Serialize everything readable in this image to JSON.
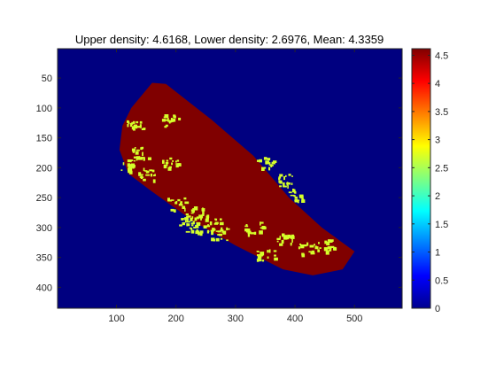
{
  "chart_data": {
    "type": "heatmap",
    "title": "Upper density: 4.6168, Lower density: 2.6976, Mean: 4.3359",
    "xlabel": "",
    "ylabel": "",
    "x_ticks": [
      100,
      200,
      300,
      400,
      500
    ],
    "y_ticks": [
      50,
      100,
      150,
      200,
      250,
      300,
      350,
      400
    ],
    "xlim": [
      1,
      580
    ],
    "ylim": [
      1,
      435
    ],
    "y_reversed": true,
    "grid": false,
    "colormap": "jet",
    "clim": [
      0,
      4.6168
    ],
    "colorbar": {
      "location": "right",
      "ticks": [
        0,
        0.5,
        1,
        1.5,
        2,
        2.5,
        3,
        3.5,
        4,
        4.5
      ]
    },
    "values": {
      "background": 0,
      "upper_density": 4.6168,
      "lower_density": 2.6976
    },
    "region_outline": [
      [
        160,
        58
      ],
      [
        183,
        60
      ],
      [
        260,
        120
      ],
      [
        330,
        180
      ],
      [
        390,
        250
      ],
      [
        445,
        300
      ],
      [
        500,
        340
      ],
      [
        480,
        370
      ],
      [
        430,
        380
      ],
      [
        380,
        370
      ],
      [
        300,
        330
      ],
      [
        230,
        290
      ],
      [
        160,
        240
      ],
      [
        120,
        210
      ],
      [
        105,
        170
      ],
      [
        110,
        130
      ],
      [
        125,
        100
      ]
    ],
    "low_density_patches": [
      {
        "x": 190,
        "y": 120
      },
      {
        "x": 140,
        "y": 175
      },
      {
        "x": 120,
        "y": 195
      },
      {
        "x": 150,
        "y": 210
      },
      {
        "x": 190,
        "y": 190
      },
      {
        "x": 240,
        "y": 275
      },
      {
        "x": 220,
        "y": 285
      },
      {
        "x": 260,
        "y": 295
      },
      {
        "x": 230,
        "y": 300
      },
      {
        "x": 270,
        "y": 310
      },
      {
        "x": 350,
        "y": 190
      },
      {
        "x": 380,
        "y": 220
      },
      {
        "x": 400,
        "y": 245
      },
      {
        "x": 330,
        "y": 300
      },
      {
        "x": 380,
        "y": 320
      },
      {
        "x": 420,
        "y": 335
      },
      {
        "x": 450,
        "y": 330
      },
      {
        "x": 350,
        "y": 345
      },
      {
        "x": 200,
        "y": 260
      },
      {
        "x": 130,
        "y": 130
      }
    ]
  }
}
